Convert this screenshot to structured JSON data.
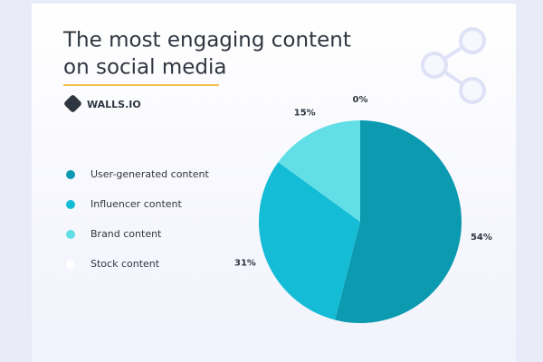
{
  "chart_data": {
    "type": "pie",
    "title": [
      "The most engaging content",
      "on social media"
    ],
    "logo": "WALLS.IO",
    "categories": [
      "User-generated content",
      "Influencer content",
      "Brand content",
      "Stock content"
    ],
    "values": [
      54,
      31,
      15,
      0
    ],
    "value_labels": [
      "54%",
      "31%",
      "15%",
      "0%"
    ],
    "colors": [
      "#0b9ab0",
      "#14bcd6",
      "#62dfe6",
      "#ffffff"
    ],
    "legend": "left"
  }
}
